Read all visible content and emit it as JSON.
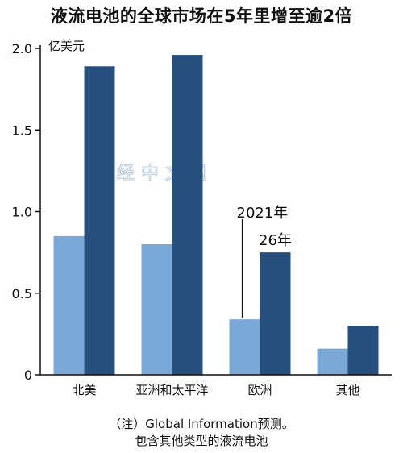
{
  "chart_data": {
    "type": "bar",
    "title": "液流电池的全球市场在5年里增至逾2倍",
    "unit_label": "亿美元",
    "categories": [
      "北美",
      "亚洲和太平洋",
      "欧洲",
      "其他"
    ],
    "series": [
      {
        "name": "2021年",
        "values": [
          0.85,
          0.8,
          0.34,
          0.16
        ],
        "color": "#7aa9d8"
      },
      {
        "name": "26年",
        "values": [
          1.89,
          1.96,
          0.75,
          0.3
        ],
        "color": "#274f7e"
      }
    ],
    "ylim": [
      0,
      2.0
    ],
    "yticks": [
      0,
      0.5,
      1.0,
      1.5,
      2.0
    ],
    "ytick_labels": [
      "0",
      "0.5",
      "1.0",
      "1.5",
      "2.0"
    ],
    "grid": false,
    "legend": "annotation-on-欧洲"
  },
  "watermark": "日经中文网",
  "notes": {
    "line1": "（注）Global Information预测。",
    "line2": "包含其他类型的液流电池"
  }
}
